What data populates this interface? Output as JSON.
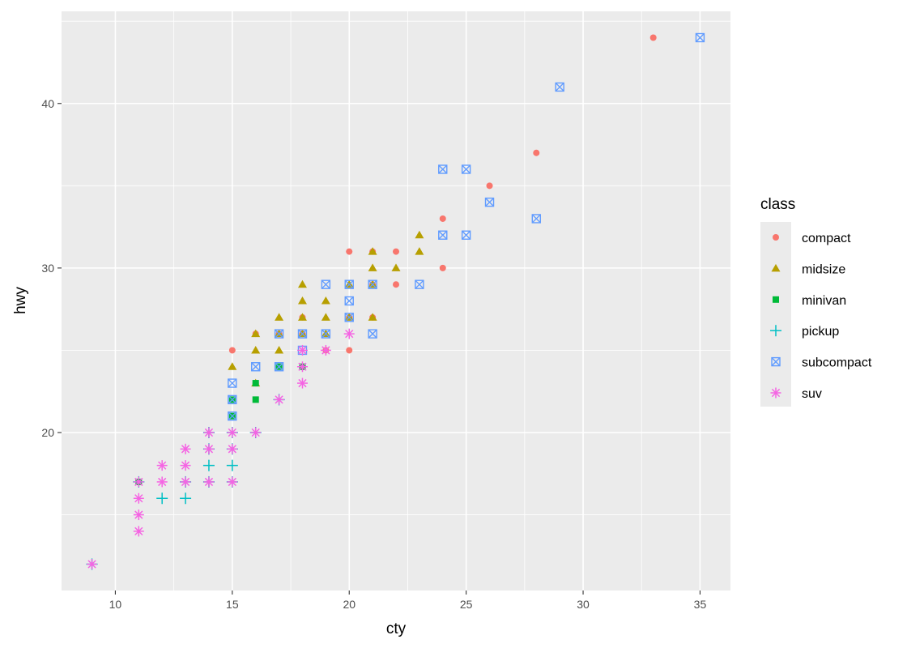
{
  "chart_data": {
    "type": "scatter",
    "xlabel": "cty",
    "ylabel": "hwy",
    "xlim": [
      7.7,
      36.3
    ],
    "ylim": [
      10.4,
      45.6
    ],
    "x_ticks": [
      10,
      15,
      20,
      25,
      30,
      35
    ],
    "y_ticks": [
      20,
      30,
      40
    ],
    "grid": true,
    "legend": {
      "title": "class",
      "placement": "right"
    },
    "series": [
      {
        "name": "compact",
        "color": "#F8766D",
        "shape": "circle",
        "points": [
          [
            33,
            44
          ],
          [
            28,
            37
          ],
          [
            26,
            35
          ],
          [
            24,
            33
          ],
          [
            24,
            30
          ],
          [
            22,
            31
          ],
          [
            22,
            29
          ],
          [
            21,
            31
          ],
          [
            21,
            27
          ],
          [
            20,
            31
          ],
          [
            20,
            27
          ],
          [
            20,
            25
          ],
          [
            19,
            25
          ],
          [
            18,
            27
          ],
          [
            18,
            26
          ],
          [
            18,
            24
          ],
          [
            17,
            26
          ],
          [
            17,
            24
          ],
          [
            16,
            26
          ],
          [
            16,
            23
          ],
          [
            15,
            25
          ],
          [
            21,
            29
          ]
        ]
      },
      {
        "name": "midsize",
        "color": "#B79F00",
        "shape": "triangle",
        "points": [
          [
            23,
            32
          ],
          [
            23,
            31
          ],
          [
            22,
            30
          ],
          [
            21,
            31
          ],
          [
            21,
            30
          ],
          [
            21,
            29
          ],
          [
            21,
            27
          ],
          [
            20,
            27
          ],
          [
            19,
            28
          ],
          [
            19,
            27
          ],
          [
            19,
            26
          ],
          [
            18,
            29
          ],
          [
            18,
            28
          ],
          [
            18,
            27
          ],
          [
            18,
            26
          ],
          [
            17,
            27
          ],
          [
            17,
            26
          ],
          [
            17,
            25
          ],
          [
            16,
            26
          ],
          [
            16,
            25
          ],
          [
            16,
            23
          ],
          [
            15,
            24
          ],
          [
            20,
            29
          ]
        ]
      },
      {
        "name": "minivan",
        "color": "#00BA38",
        "shape": "square",
        "points": [
          [
            18,
            24
          ],
          [
            17,
            24
          ],
          [
            16,
            22
          ],
          [
            16,
            23
          ],
          [
            15,
            22
          ],
          [
            15,
            21
          ],
          [
            11,
            17
          ]
        ]
      },
      {
        "name": "pickup",
        "color": "#00BFC4",
        "shape": "plus",
        "points": [
          [
            17,
            22
          ],
          [
            16,
            20
          ],
          [
            15,
            20
          ],
          [
            15,
            19
          ],
          [
            15,
            18
          ],
          [
            15,
            17
          ],
          [
            14,
            20
          ],
          [
            14,
            19
          ],
          [
            14,
            18
          ],
          [
            14,
            17
          ],
          [
            13,
            17
          ],
          [
            13,
            16
          ],
          [
            12,
            16
          ],
          [
            11,
            17
          ],
          [
            9,
            12
          ]
        ]
      },
      {
        "name": "subcompact",
        "color": "#619CFF",
        "shape": "square-cross",
        "points": [
          [
            35,
            44
          ],
          [
            29,
            41
          ],
          [
            28,
            33
          ],
          [
            26,
            34
          ],
          [
            25,
            36
          ],
          [
            25,
            32
          ],
          [
            24,
            36
          ],
          [
            24,
            32
          ],
          [
            23,
            29
          ],
          [
            21,
            26
          ],
          [
            21,
            29
          ],
          [
            20,
            29
          ],
          [
            20,
            28
          ],
          [
            20,
            27
          ],
          [
            19,
            29
          ],
          [
            19,
            26
          ],
          [
            18,
            26
          ],
          [
            18,
            25
          ],
          [
            17,
            26
          ],
          [
            17,
            24
          ],
          [
            16,
            24
          ],
          [
            15,
            23
          ],
          [
            15,
            22
          ],
          [
            15,
            21
          ]
        ]
      },
      {
        "name": "suv",
        "color": "#F564E3",
        "shape": "asterisk",
        "points": [
          [
            20,
            26
          ],
          [
            19,
            25
          ],
          [
            18,
            25
          ],
          [
            18,
            24
          ],
          [
            18,
            23
          ],
          [
            17,
            22
          ],
          [
            16,
            20
          ],
          [
            15,
            20
          ],
          [
            15,
            19
          ],
          [
            15,
            17
          ],
          [
            14,
            20
          ],
          [
            14,
            19
          ],
          [
            14,
            17
          ],
          [
            13,
            19
          ],
          [
            13,
            18
          ],
          [
            13,
            17
          ],
          [
            12,
            18
          ],
          [
            12,
            17
          ],
          [
            11,
            17
          ],
          [
            11,
            16
          ],
          [
            11,
            15
          ],
          [
            11,
            14
          ],
          [
            9,
            12
          ]
        ]
      }
    ]
  }
}
